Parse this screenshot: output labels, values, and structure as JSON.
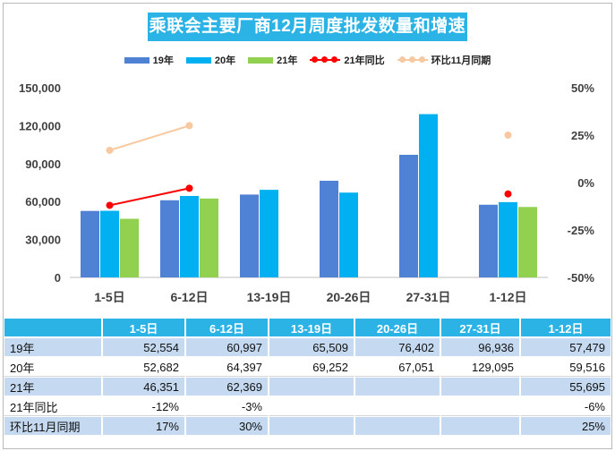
{
  "title": "乘联会主要厂商12月周度批发数量和增速",
  "legend": [
    {
      "label": "19年",
      "color": "#4f81d5",
      "kind": "bar"
    },
    {
      "label": "20年",
      "color": "#00b0f0",
      "kind": "bar"
    },
    {
      "label": "21年",
      "color": "#92d050",
      "kind": "bar"
    },
    {
      "label": "21年同比",
      "color": "#ff0000",
      "kind": "line"
    },
    {
      "label": "环比11月同期",
      "color": "#f8c8a0",
      "kind": "line"
    }
  ],
  "chart_data": {
    "type": "bar",
    "categories": [
      "1-5日",
      "6-12日",
      "13-19日",
      "20-26日",
      "27-31日",
      "1-12日"
    ],
    "series": [
      {
        "name": "19年",
        "color": "#4f81d5",
        "values": [
          52554,
          60997,
          65509,
          76402,
          96936,
          57479
        ]
      },
      {
        "name": "20年",
        "color": "#00b0f0",
        "values": [
          52682,
          64397,
          69252,
          67051,
          129095,
          59516
        ]
      },
      {
        "name": "21年",
        "color": "#92d050",
        "values": [
          46351,
          62369,
          null,
          null,
          null,
          55695
        ]
      }
    ],
    "line_series": [
      {
        "name": "21年同比",
        "color": "#ff0000",
        "axis": "right",
        "values": [
          -12,
          -3,
          null,
          null,
          null,
          -6
        ]
      },
      {
        "name": "环比11月同期",
        "color": "#f8c8a0",
        "axis": "right",
        "values": [
          17,
          30,
          null,
          null,
          null,
          25
        ]
      }
    ],
    "left_axis": {
      "min": 0,
      "max": 150000,
      "ticks": [
        "0",
        "30,000",
        "60,000",
        "90,000",
        "120,000",
        "150,000"
      ]
    },
    "right_axis": {
      "min": -50,
      "max": 50,
      "ticks": [
        "-50%",
        "-25%",
        "0%",
        "25%",
        "50%"
      ]
    }
  },
  "table": {
    "headers": [
      "",
      "1-5日",
      "6-12日",
      "13-19日",
      "20-26日",
      "27-31日",
      "1-12日"
    ],
    "rows": [
      {
        "label": "19年",
        "cells": [
          "52,554",
          "60,997",
          "65,509",
          "76,402",
          "96,936",
          "57,479"
        ]
      },
      {
        "label": "20年",
        "cells": [
          "52,682",
          "64,397",
          "69,252",
          "67,051",
          "129,095",
          "59,516"
        ]
      },
      {
        "label": "21年",
        "cells": [
          "46,351",
          "62,369",
          "",
          "",
          "",
          "55,695"
        ]
      },
      {
        "label": "21年同比",
        "cells": [
          "-12%",
          "-3%",
          "",
          "",
          "",
          "-6%"
        ]
      },
      {
        "label": "环比11月同期",
        "cells": [
          "17%",
          "30%",
          "",
          "",
          "",
          "25%"
        ]
      }
    ]
  }
}
